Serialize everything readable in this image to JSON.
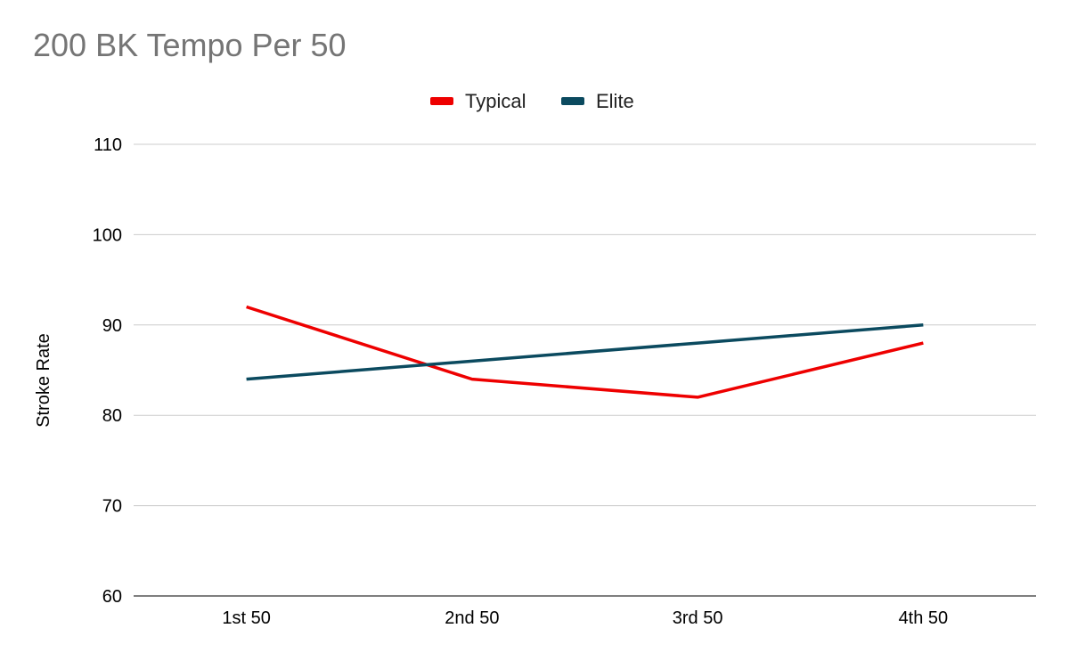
{
  "chart_data": {
    "type": "line",
    "title": "200 BK Tempo Per 50",
    "xlabel": "",
    "ylabel": "Stroke Rate",
    "categories": [
      "1st 50",
      "2nd 50",
      "3rd 50",
      "4th 50"
    ],
    "series": [
      {
        "name": "Typical",
        "values": [
          92,
          84,
          82,
          88
        ],
        "color": "#ee0000"
      },
      {
        "name": "Elite",
        "values": [
          84,
          86,
          88,
          90
        ],
        "color": "#0b4a5f"
      }
    ],
    "ylim": [
      60,
      110
    ],
    "yticks": [
      60,
      70,
      80,
      90,
      100,
      110
    ],
    "grid": true,
    "legend_position": "top-center"
  }
}
